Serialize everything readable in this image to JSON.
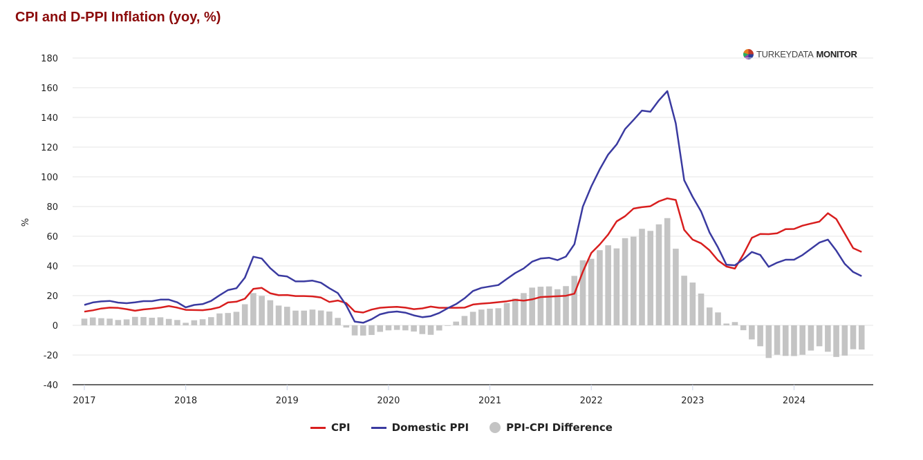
{
  "title": "CPI and D-PPI Inflation (yoy, %)",
  "logo": {
    "light": "TURKEYDATA",
    "bold": "MONITOR"
  },
  "colors": {
    "cpi": "#d81e1e",
    "ppi": "#3a3aa0",
    "diff": "#c4c4c4",
    "title": "#8b0a0a"
  },
  "legend": [
    {
      "label": "CPI",
      "marker": "line",
      "color": "#d81e1e"
    },
    {
      "label": "Domestic PPI",
      "marker": "line",
      "color": "#3a3aa0"
    },
    {
      "label": "PPI-CPI Difference",
      "marker": "circle",
      "color": "#c4c4c4"
    }
  ],
  "chart_data": {
    "type": "line",
    "title": "CPI and D-PPI Inflation (yoy, %)",
    "xlabel": "",
    "ylabel": "%",
    "ylim": [
      -40,
      180
    ],
    "yticks": [
      -40,
      -20,
      0,
      20,
      40,
      60,
      80,
      100,
      120,
      140,
      160,
      180
    ],
    "xticks": [
      "2017",
      "2018",
      "2019",
      "2020",
      "2021",
      "2022",
      "2023",
      "2024"
    ],
    "x_start": "2017-01",
    "x_frequency": "monthly",
    "grid": true,
    "legend_position": "bottom",
    "series": [
      {
        "name": "CPI",
        "type": "line",
        "values": [
          9.2,
          10.1,
          11.3,
          11.9,
          11.7,
          10.9,
          9.8,
          10.7,
          11.2,
          11.9,
          13.0,
          11.9,
          10.4,
          10.3,
          10.2,
          10.9,
          12.2,
          15.4,
          15.9,
          17.9,
          24.5,
          25.2,
          21.6,
          20.3,
          20.4,
          19.7,
          19.7,
          19.5,
          18.7,
          15.7,
          16.7,
          15.0,
          9.3,
          8.6,
          10.6,
          11.8,
          12.2,
          12.4,
          11.9,
          10.9,
          11.4,
          12.6,
          11.8,
          11.8,
          11.8,
          11.9,
          14.0,
          14.6,
          15.0,
          15.6,
          16.2,
          17.1,
          16.6,
          17.5,
          19.0,
          19.3,
          19.6,
          19.9,
          21.3,
          36.1,
          48.7,
          54.4,
          61.1,
          70.0,
          73.5,
          78.6,
          79.6,
          80.2,
          83.5,
          85.5,
          84.4,
          64.3,
          57.7,
          55.2,
          50.5,
          43.7,
          39.6,
          38.2,
          47.8,
          58.9,
          61.5,
          61.4,
          62.0,
          64.8,
          64.9,
          67.1,
          68.5,
          69.8,
          75.5,
          71.6,
          61.8,
          52.0,
          49.4
        ]
      },
      {
        "name": "Domestic PPI",
        "type": "line",
        "values": [
          13.7,
          15.4,
          16.1,
          16.4,
          15.3,
          14.9,
          15.5,
          16.3,
          16.3,
          17.3,
          17.3,
          15.5,
          12.1,
          13.7,
          14.3,
          16.4,
          20.2,
          23.7,
          25.0,
          32.1,
          46.2,
          45.0,
          38.5,
          33.6,
          32.9,
          29.6,
          29.6,
          30.1,
          28.7,
          25.0,
          21.7,
          13.5,
          2.5,
          1.7,
          4.1,
          7.4,
          8.8,
          9.3,
          8.5,
          6.7,
          5.5,
          6.2,
          8.3,
          11.5,
          14.3,
          18.2,
          23.1,
          25.2,
          26.2,
          27.1,
          31.2,
          35.2,
          38.3,
          42.9,
          45.0,
          45.5,
          43.9,
          46.3,
          54.6,
          79.9,
          93.5,
          105.0,
          115.0,
          121.8,
          132.2,
          138.3,
          144.6,
          143.8,
          151.5,
          157.7,
          136.0,
          97.7,
          86.5,
          76.6,
          62.5,
          52.4,
          40.8,
          40.4,
          44.5,
          49.4,
          47.4,
          39.4,
          42.2,
          44.2,
          44.2,
          47.3,
          51.5,
          55.7,
          57.7,
          50.3,
          41.4,
          35.9,
          33.1
        ]
      },
      {
        "name": "PPI-CPI Difference",
        "type": "bar",
        "values": [
          4.5,
          5.3,
          4.8,
          4.5,
          3.6,
          4.0,
          5.7,
          5.6,
          5.1,
          5.4,
          4.3,
          3.6,
          1.7,
          3.4,
          4.1,
          5.5,
          8.0,
          8.3,
          9.1,
          14.2,
          21.7,
          19.8,
          16.9,
          13.3,
          12.5,
          9.9,
          9.9,
          10.6,
          10.0,
          9.3,
          5.0,
          -1.5,
          -6.8,
          -6.9,
          -6.5,
          -4.4,
          -3.4,
          -3.1,
          -3.4,
          -4.2,
          -5.9,
          -6.4,
          -3.5,
          -0.3,
          2.5,
          6.3,
          9.1,
          10.6,
          11.2,
          11.5,
          15.0,
          18.1,
          21.7,
          25.4,
          26.0,
          26.2,
          24.3,
          26.4,
          33.3,
          43.8,
          44.8,
          50.6,
          53.9,
          51.8,
          58.7,
          59.7,
          65.0,
          63.6,
          68.0,
          72.2,
          51.6,
          33.4,
          28.8,
          21.4,
          12.0,
          8.7,
          1.2,
          2.2,
          -3.3,
          -9.5,
          -14.1,
          -22.0,
          -19.8,
          -20.6,
          -20.7,
          -19.8,
          -17.0,
          -14.1,
          -17.8,
          -21.3,
          -20.4,
          -16.1,
          -16.3
        ]
      }
    ]
  }
}
